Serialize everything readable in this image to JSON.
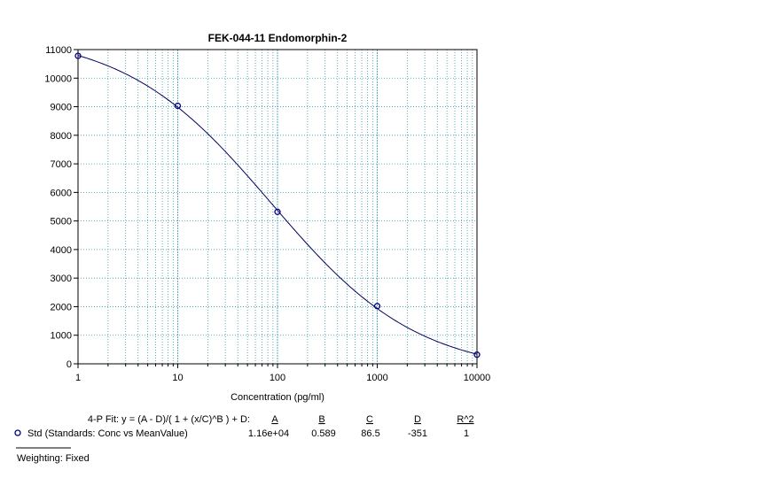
{
  "chart_data": {
    "type": "scatter",
    "title": "FEK-044-11 Endomorphin-2",
    "xlabel": "Concentration (pg/ml)",
    "ylabel": "",
    "x_scale": "log",
    "xlim": [
      1,
      10000
    ],
    "ylim": [
      0,
      11000
    ],
    "x_ticks": [
      1,
      10,
      100,
      1000,
      10000
    ],
    "x_tick_labels": [
      "1",
      "10",
      "100",
      "1000",
      "10000"
    ],
    "y_ticks": [
      0,
      1000,
      2000,
      3000,
      4000,
      5000,
      6000,
      7000,
      8000,
      9000,
      10000,
      11000
    ],
    "y_tick_labels": [
      "0",
      "1000",
      "2000",
      "3000",
      "4000",
      "5000",
      "6000",
      "7000",
      "8000",
      "9000",
      "10000",
      "11000"
    ],
    "grid": true,
    "series": [
      {
        "name": "Std (Standards: Conc vs MeanValue)",
        "x": [
          1,
          10,
          100,
          1000,
          10000
        ],
        "y": [
          10780,
          9030,
          5320,
          2020,
          320
        ]
      }
    ],
    "fit": {
      "model": "4-P Fit",
      "equation": "4-P Fit:  y = (A - D)/( 1 + (x/C)^B ) + D:",
      "params": {
        "A": 11600,
        "B": 0.589,
        "C": 86.5,
        "D": -351
      },
      "headers": [
        "A",
        "B",
        "C",
        "D",
        "R^2"
      ],
      "values": [
        "1.16e+04",
        "0.589",
        "86.5",
        "-351",
        "1"
      ]
    },
    "weighting": "Weighting: Fixed",
    "colors": {
      "curve": "#000060",
      "marker": "#000080",
      "grid": "#3399aa"
    }
  }
}
